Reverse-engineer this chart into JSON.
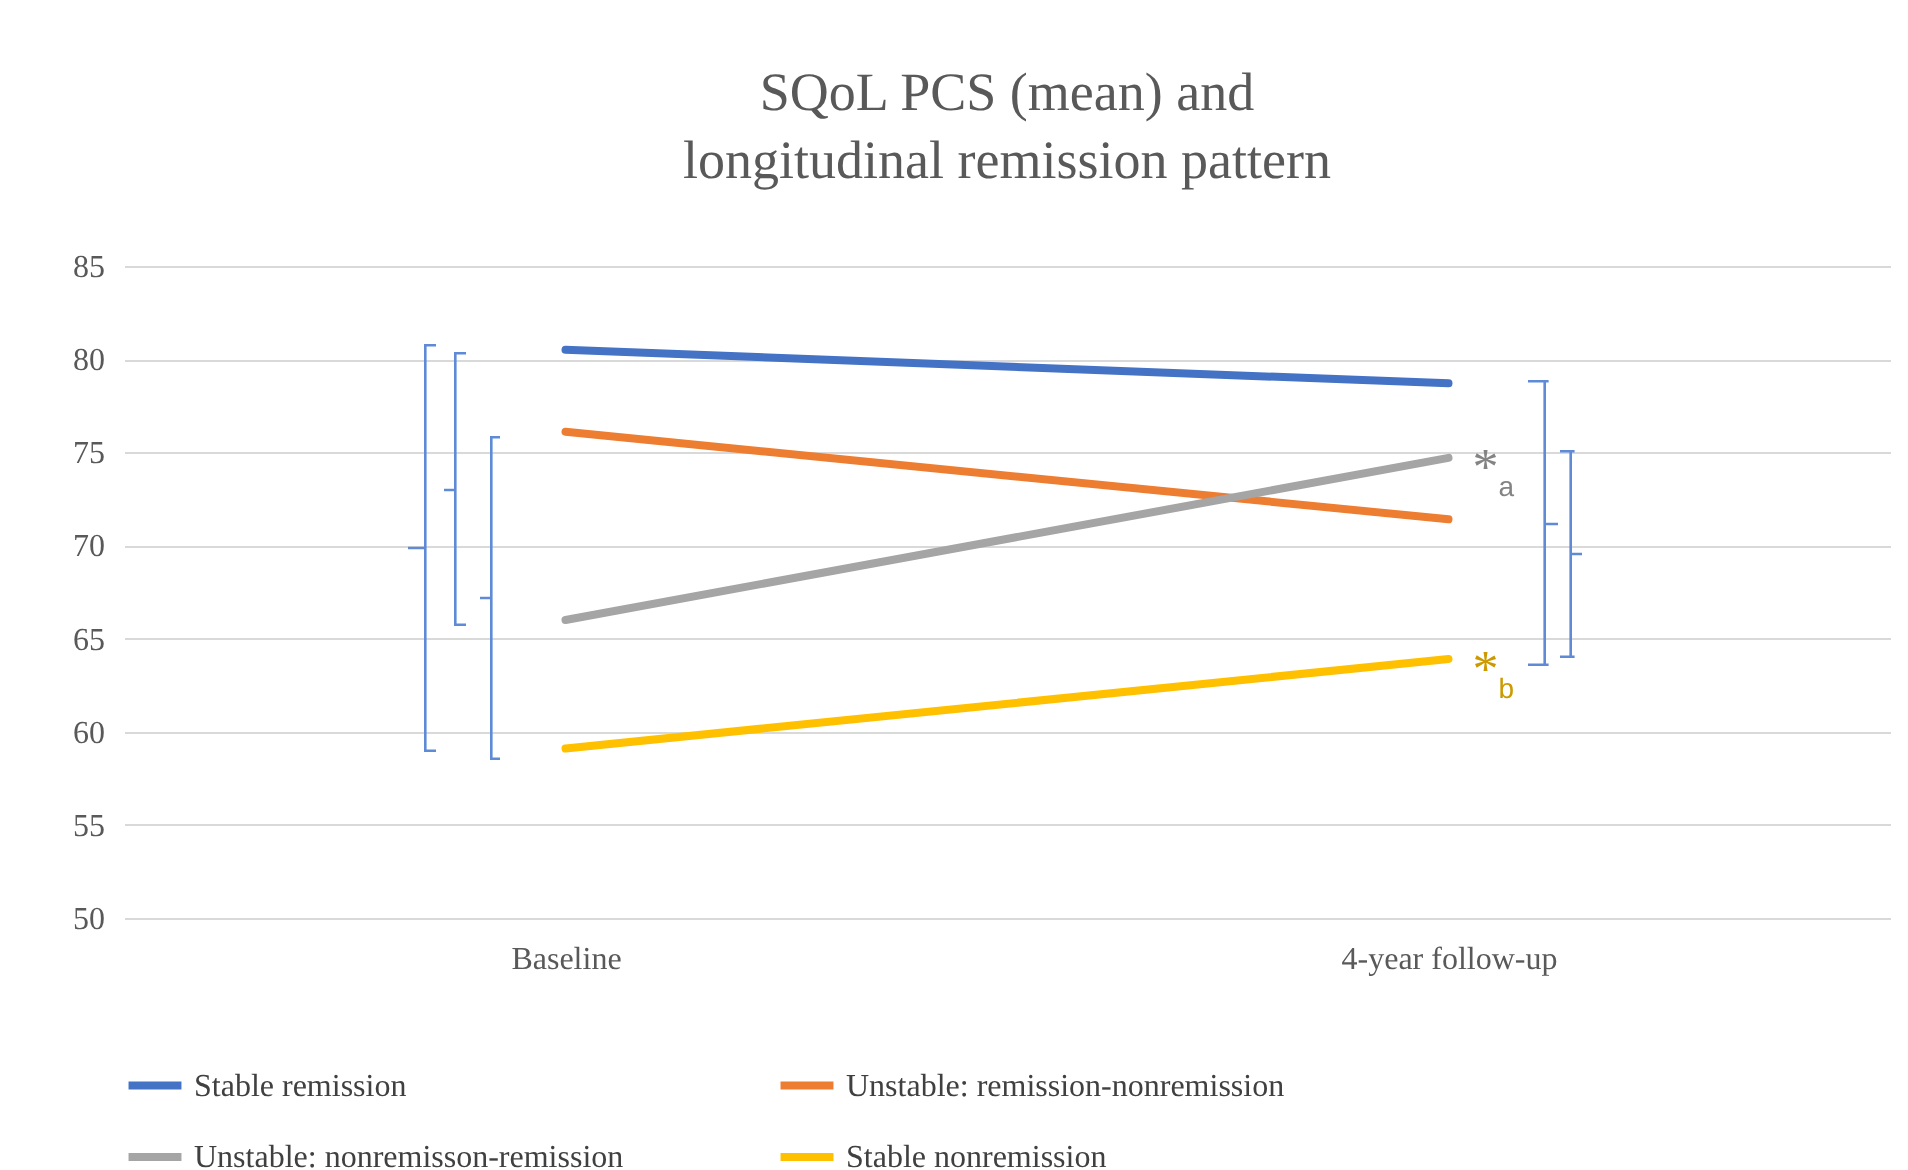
{
  "chart_data": {
    "type": "line",
    "title": "SQoL PCS (mean) and\nlongitudinal remission pattern",
    "categories": [
      "Baseline",
      "4-year follow-up"
    ],
    "series": [
      {
        "name": "Stable remission",
        "color": "#4472c4",
        "values": [
          80.5,
          78.7
        ]
      },
      {
        "name": "Unstable: remission-nonremission",
        "color": "#ed7d31",
        "values": [
          76.1,
          71.4
        ]
      },
      {
        "name": "Unstable: nonremisson-remission",
        "color": "#a5a5a5",
        "values": [
          66.0,
          74.7
        ]
      },
      {
        "name": "Stable nonremission",
        "color": "#ffc000",
        "values": [
          59.1,
          63.9
        ]
      }
    ],
    "ylim": [
      50,
      85
    ],
    "yticks": [
      50,
      55,
      60,
      65,
      70,
      75,
      80,
      85
    ],
    "grid": "y",
    "legend": "bottom",
    "marker": "none",
    "line_style": "solid",
    "annotations": [
      {
        "text": "*$_{a}$",
        "x": "4-year follow-up",
        "y": 74.7
      },
      {
        "text": "*$_{b}$",
        "x": "4-year follow-up",
        "y": 63.9
      }
    ]
  }
}
